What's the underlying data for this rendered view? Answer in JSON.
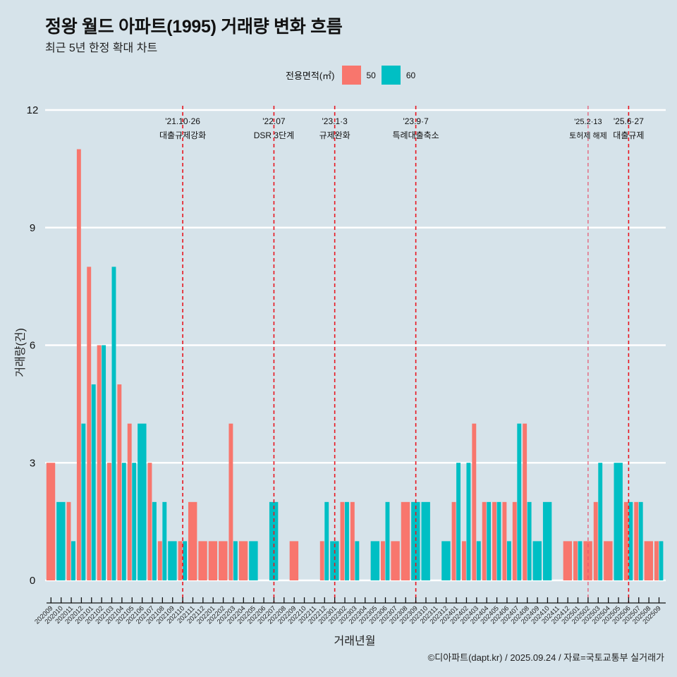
{
  "header": {
    "title": "정왕 월드 아파트(1995) 거래량 변화 흐름",
    "subtitle": "최근 5년 한정 확대 차트"
  },
  "legend": {
    "title": "전용면적(㎡)",
    "items": [
      {
        "label": "50",
        "color": "#f8766d"
      },
      {
        "label": "60",
        "color": "#00bfc4"
      }
    ]
  },
  "footer": {
    "credit": "©디아파트(dapt.kr) / 2025.09.24 / 자료=국토교통부 실거래가"
  },
  "chart_data": {
    "type": "bar",
    "title": "정왕 월드 아파트(1995) 거래량 변화 흐름",
    "subtitle": "최근 5년 한정 확대 차트",
    "xlabel": "거래년월",
    "ylabel": "거래량(건)",
    "ylim": [
      0,
      12
    ],
    "yticks": [
      0,
      3,
      6,
      9,
      12
    ],
    "grid": true,
    "legend_position": "top",
    "categories": [
      "202009",
      "202010",
      "202011",
      "202012",
      "202101",
      "202102",
      "202103",
      "202104",
      "202105",
      "202106",
      "202107",
      "202108",
      "202109",
      "202110",
      "202111",
      "202112",
      "202201",
      "202202",
      "202203",
      "202204",
      "202205",
      "202206",
      "202207",
      "202208",
      "202209",
      "202210",
      "202211",
      "202212",
      "202301",
      "202302",
      "202303",
      "202304",
      "202305",
      "202306",
      "202307",
      "202308",
      "202309",
      "202310",
      "202311",
      "202312",
      "202401",
      "202402",
      "202403",
      "202404",
      "202405",
      "202406",
      "202407",
      "202408",
      "202409",
      "202410",
      "202411",
      "202412",
      "202501",
      "202502",
      "202503",
      "202504",
      "202505",
      "202506",
      "202507",
      "202508",
      "202509"
    ],
    "series": [
      {
        "name": "50",
        "color": "#f8766d",
        "values": [
          3,
          0,
          2,
          11,
          8,
          6,
          3,
          5,
          4,
          0,
          3,
          1,
          0,
          1,
          2,
          1,
          1,
          1,
          4,
          1,
          0,
          0,
          0,
          0,
          1,
          0,
          0,
          1,
          0,
          2,
          2,
          0,
          0,
          1,
          1,
          2,
          0,
          0,
          0,
          0,
          2,
          1,
          4,
          2,
          2,
          2,
          2,
          4,
          0,
          0,
          0,
          1,
          1,
          1,
          2,
          1,
          0,
          2,
          2,
          1,
          1
        ]
      },
      {
        "name": "60",
        "color": "#00bfc4",
        "values": [
          0,
          2,
          1,
          4,
          5,
          6,
          8,
          3,
          3,
          4,
          2,
          2,
          1,
          1,
          0,
          0,
          0,
          0,
          1,
          0,
          1,
          0,
          2,
          0,
          0,
          0,
          0,
          2,
          1,
          2,
          1,
          0,
          1,
          2,
          0,
          0,
          2,
          2,
          0,
          1,
          3,
          3,
          1,
          2,
          2,
          1,
          4,
          2,
          1,
          2,
          0,
          0,
          1,
          0,
          3,
          0,
          3,
          2,
          2,
          0,
          1
        ]
      }
    ],
    "annotations": [
      {
        "month": "202110",
        "date": "'21.10·26",
        "label": "대출규제강화",
        "style": "major"
      },
      {
        "month": "202207",
        "date": "'22.07",
        "label": "DSR 3단계",
        "style": "major"
      },
      {
        "month": "202301",
        "date": "'23.1·3",
        "label": "규제완화",
        "style": "major"
      },
      {
        "month": "202309",
        "date": "'23.9·7",
        "label": "특례대출축소",
        "style": "major"
      },
      {
        "month": "202502",
        "date": "'25.2·13",
        "label": "토허제 해제",
        "style": "minor"
      },
      {
        "month": "202506",
        "date": "'25.6·27",
        "label": "대출규제",
        "style": "major"
      }
    ]
  }
}
